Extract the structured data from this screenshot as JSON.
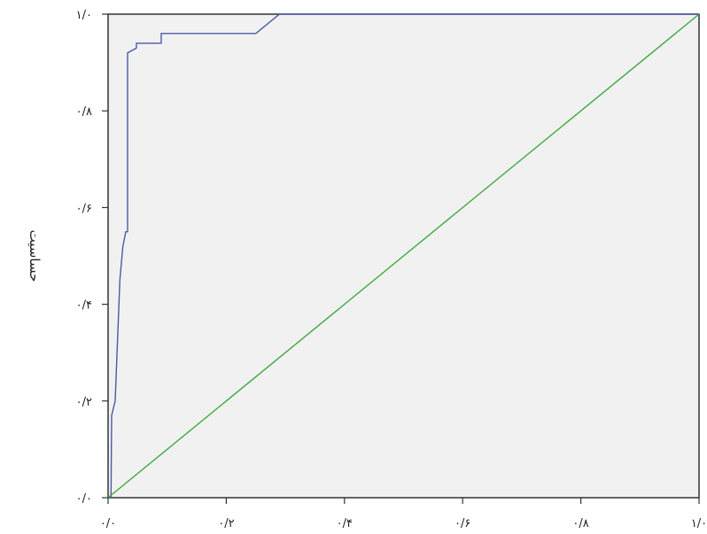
{
  "chart_data": {
    "type": "line",
    "title": "",
    "xlabel": "",
    "ylabel": "حساسیت",
    "xlim": [
      0,
      1
    ],
    "ylim": [
      0,
      1
    ],
    "x_ticks": [
      {
        "value": 0.0,
        "label": "۰/۰"
      },
      {
        "value": 0.2,
        "label": "۰/۲"
      },
      {
        "value": 0.4,
        "label": "۰/۴"
      },
      {
        "value": 0.6,
        "label": "۰/۶"
      },
      {
        "value": 0.8,
        "label": "۰/۸"
      },
      {
        "value": 1.0,
        "label": "۱/۰"
      }
    ],
    "y_ticks": [
      {
        "value": 0.0,
        "label": "۰/۰"
      },
      {
        "value": 0.2,
        "label": "۰/۲"
      },
      {
        "value": 0.4,
        "label": "۰/۴"
      },
      {
        "value": 0.6,
        "label": "۰/۶"
      },
      {
        "value": 0.8,
        "label": "۰/۸"
      },
      {
        "value": 1.0,
        "label": "۱/۰"
      }
    ],
    "grid": false,
    "series": [
      {
        "color": "#4a5aa8",
        "x": [
          0.0,
          0.005,
          0.006,
          0.012,
          0.012,
          0.02,
          0.02,
          0.025,
          0.03,
          0.033,
          0.033,
          0.048,
          0.048,
          0.09,
          0.09,
          0.25,
          0.29,
          1.0
        ],
        "y": [
          0.0,
          0.0,
          0.17,
          0.2,
          0.2,
          0.45,
          0.45,
          0.52,
          0.55,
          0.55,
          0.92,
          0.93,
          0.94,
          0.94,
          0.96,
          0.96,
          1.0,
          1.0
        ]
      },
      {
        "color": "#3daa3d",
        "x": [
          0.0,
          1.0
        ],
        "y": [
          0.0,
          1.0
        ]
      }
    ]
  }
}
